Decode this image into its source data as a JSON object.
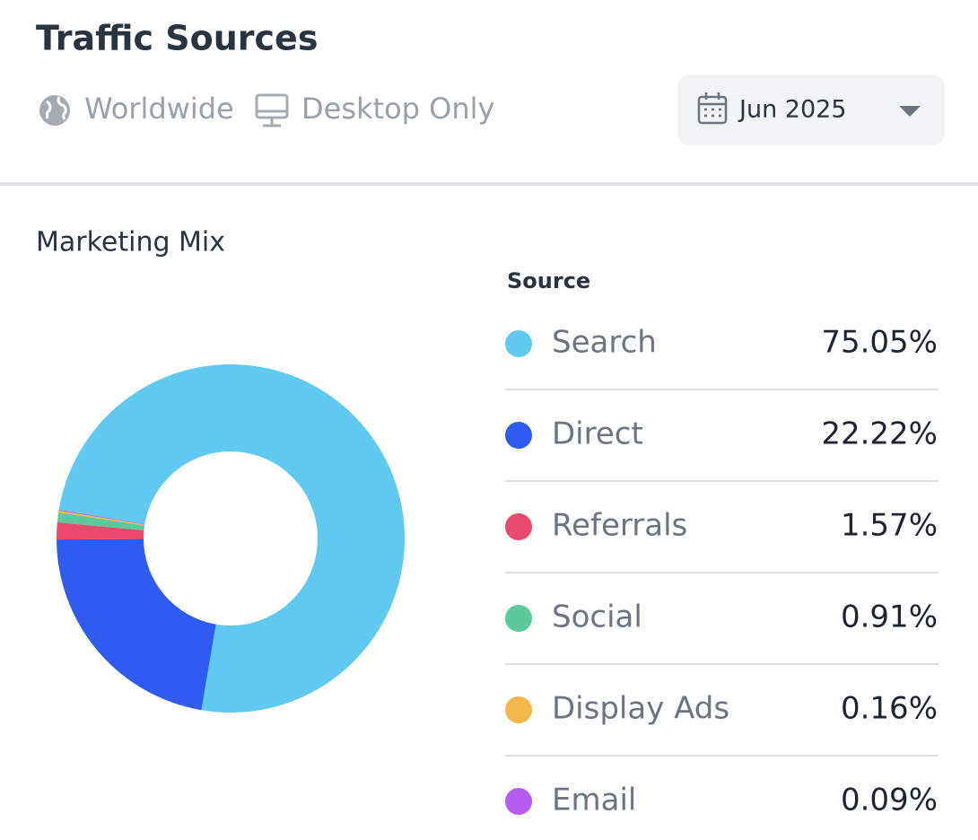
{
  "header": {
    "title": "Traffic Sources",
    "region": "Worldwide",
    "device": "Desktop Only",
    "date": "Jun 2025"
  },
  "chart_data": {
    "type": "pie",
    "title": "Marketing Mix",
    "legend_title": "Source",
    "categories": [
      "Search",
      "Direct",
      "Referrals",
      "Social",
      "Display Ads",
      "Email"
    ],
    "values": [
      75.05,
      22.22,
      1.57,
      0.91,
      0.16,
      0.09
    ],
    "value_labels": [
      "75.05%",
      "22.22%",
      "1.57%",
      "0.91%",
      "0.16%",
      "0.09%"
    ],
    "colors": [
      "#5fc9f0",
      "#2e5bf0",
      "#e84a6f",
      "#5cc99a",
      "#f2b84b",
      "#b65cf0"
    ]
  }
}
